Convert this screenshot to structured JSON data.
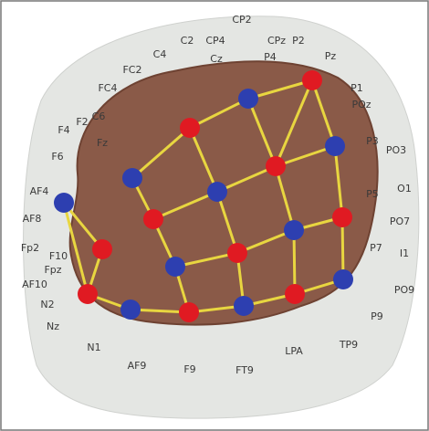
{
  "labels": [
    "CP2",
    "C2",
    "CP4",
    "CPz",
    "P2",
    "C4",
    "Cz",
    "P4",
    "Pz",
    "FC2",
    "P1",
    "FC4",
    "POz",
    "C6",
    "F2",
    "F4",
    "Fz",
    "F6",
    "P3",
    "PO3",
    "AF4",
    "O1",
    "AF8",
    "P5",
    "PO7",
    "Fp2",
    "F10",
    "P7",
    "I1",
    "Fpz",
    "AF10",
    "PO9",
    "N2",
    "P9",
    "Nz",
    "N1",
    "TP9",
    "LPA",
    "AF9",
    "F9",
    "FT9"
  ]
}
